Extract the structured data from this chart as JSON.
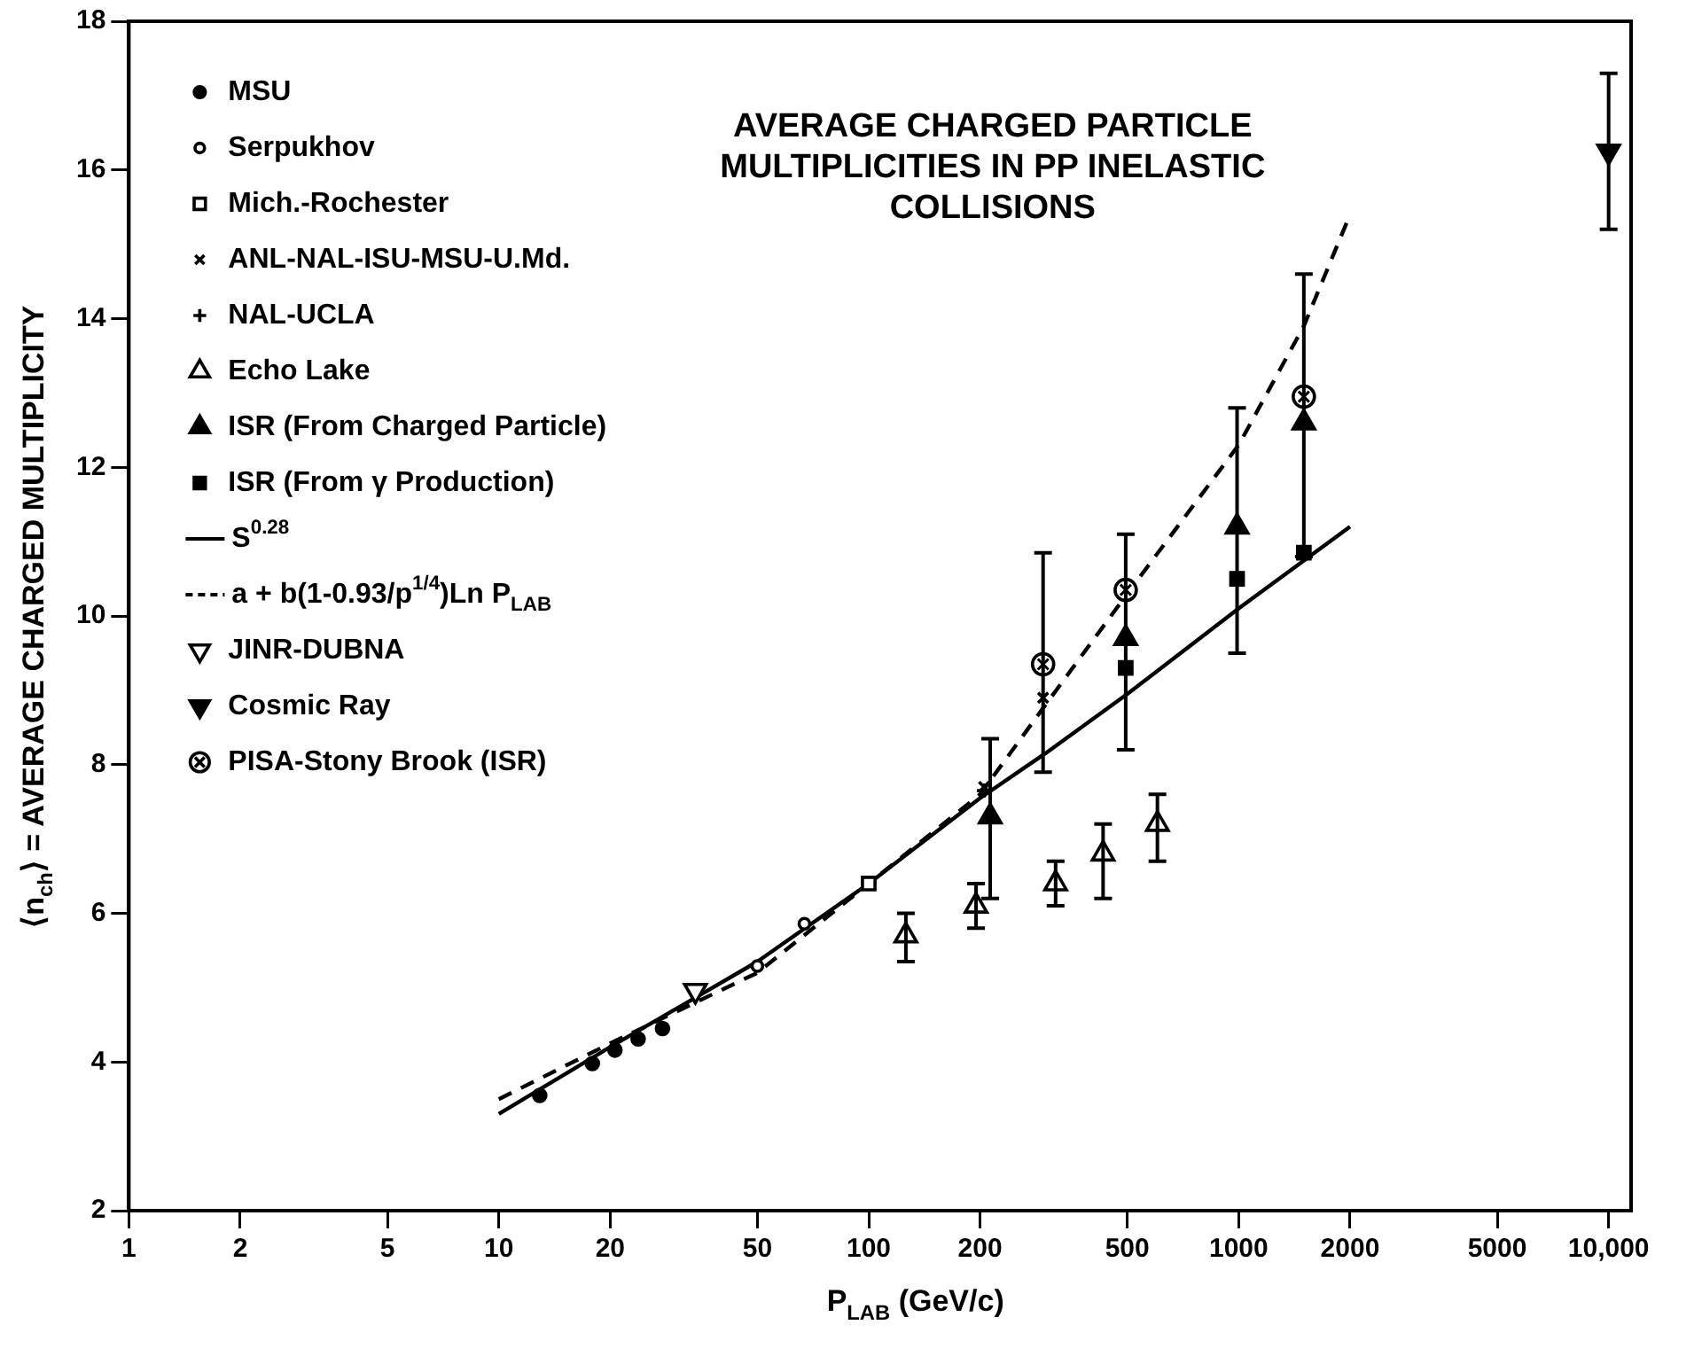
{
  "chart_data": {
    "type": "scatter",
    "title": "AVERAGE CHARGED PARTICLE MULTIPLICITIES IN PP INELASTIC COLLISIONS",
    "xlabel": "P$_{LAB}$ (GeV/c)",
    "ylabel": "⟨n$_{ch}$⟩ = AVERAGE CHARGED MULTIPLICITY",
    "log": "x",
    "xlim": [
      1,
      11500
    ],
    "ylim": [
      2,
      18
    ],
    "xticks": [
      1,
      2,
      5,
      10,
      20,
      50,
      100,
      200,
      500,
      1000,
      2000,
      5000,
      {
        "value": 10000,
        "label": "10,000"
      }
    ],
    "yticks": [
      2,
      4,
      6,
      8,
      10,
      12,
      14,
      16,
      18
    ],
    "grid": false,
    "legend": "top left",
    "series": [
      {
        "name": "MSU",
        "color": "#000000",
        "marker": "circle",
        "x": [
          12.9,
          17.9,
          20.6,
          23.8,
          27.7
        ],
        "values": [
          3.55,
          3.98,
          4.16,
          4.31,
          4.45
        ]
      },
      {
        "name": "Serpukhov",
        "color": "#000000",
        "marker": "circle-open",
        "x": [
          50,
          67
        ],
        "values": [
          5.29,
          5.86
        ]
      },
      {
        "name": "Mich.-Rochester",
        "color": "#000000",
        "marker": "square-open",
        "x": [
          100
        ],
        "values": [
          6.4
        ]
      },
      {
        "name": "ANL-NAL-ISU-MSU-U.Md.",
        "color": "#000000",
        "marker": "x",
        "x": [
          205,
          296
        ],
        "values": [
          7.7,
          8.9
        ]
      },
      {
        "name": "NAL-UCLA",
        "color": "#000000",
        "marker": "cross",
        "x": [
          205
        ],
        "values": [
          7.65
        ]
      },
      {
        "name": "Echo Lake",
        "color": "#000000",
        "marker": "triangle-open",
        "x": [
          126,
          195,
          320,
          430,
          603
        ],
        "values": [
          5.7,
          6.1,
          6.4,
          6.8,
          7.2
        ],
        "errors": [
          [
            5.35,
            6.0
          ],
          [
            5.8,
            6.4
          ],
          [
            6.1,
            6.7
          ],
          [
            6.2,
            7.2
          ],
          [
            6.7,
            7.6
          ]
        ]
      },
      {
        "name": "ISR (From Charged Particle)",
        "color": "#000000",
        "marker": "triangle",
        "x": [
          213,
          495,
          990,
          1500
        ],
        "values": [
          7.3,
          9.7,
          11.2,
          12.6
        ],
        "errors": [
          [
            6.2,
            8.35
          ],
          [
            8.2,
            11.1
          ],
          [
            9.5,
            12.8
          ],
          [
            10.8,
            14.6
          ]
        ]
      },
      {
        "name": "ISR (From γ Production)",
        "color": "#000000",
        "marker": "square",
        "x": [
          495,
          990,
          1500
        ],
        "values": [
          9.3,
          10.5,
          10.85
        ]
      },
      {
        "name": "S$^{0.28}$",
        "type": "line",
        "color": "#000000",
        "marker": "none",
        "line_style": "solid",
        "x": [
          10,
          20,
          50,
          100,
          200,
          300,
          500,
          1000,
          2000
        ],
        "values": [
          3.3,
          4.2,
          5.35,
          6.4,
          7.55,
          8.15,
          8.95,
          10.1,
          11.2
        ]
      },
      {
        "name": "a + b(1-0.93/p$^{1/4}$)Ln P$_{LAB}$",
        "type": "line",
        "color": "#000000",
        "marker": "none",
        "line_style": "dashed",
        "x": [
          10,
          20,
          50,
          100,
          200,
          300,
          500,
          1000,
          1500,
          2000
        ],
        "values": [
          3.5,
          4.25,
          5.2,
          6.4,
          7.6,
          8.8,
          10.3,
          12.3,
          13.9,
          15.4
        ]
      },
      {
        "name": "JINR-DUBNA",
        "color": "#000000",
        "marker": "triangle-down-open",
        "x": [
          34
        ],
        "values": [
          4.96
        ]
      },
      {
        "name": "Cosmic Ray",
        "color": "#000000",
        "marker": "triangle-down",
        "x": [
          10000
        ],
        "values": [
          16.25
        ],
        "errors": [
          [
            15.2,
            17.3
          ]
        ]
      },
      {
        "name": "PISA-Stony Brook (ISR)",
        "color": "#000000",
        "marker": "circle-cross",
        "x": [
          296,
          495,
          1500
        ],
        "values": [
          9.35,
          10.35,
          12.95
        ],
        "errors": [
          [
            7.9,
            10.85
          ],
          null,
          null
        ]
      }
    ]
  }
}
